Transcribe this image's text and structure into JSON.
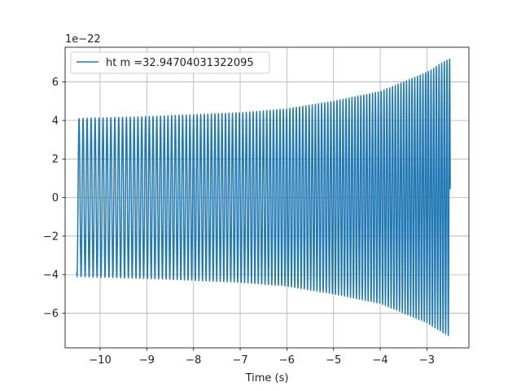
{
  "chart_data": {
    "type": "line",
    "title": "",
    "xlabel": "Time (s)",
    "ylabel": "",
    "offset_text": "1e−22",
    "xlim": [
      -10.75,
      -2.1
    ],
    "ylim": [
      -7.8,
      7.8
    ],
    "xticks": [
      -10,
      -9,
      -8,
      -7,
      -6,
      -5,
      -4,
      -3
    ],
    "xtick_labels": [
      "−10",
      "−9",
      "−8",
      "−7",
      "−6",
      "−5",
      "−4",
      "−3"
    ],
    "yticks": [
      -6,
      -4,
      -2,
      0,
      2,
      4,
      6
    ],
    "ytick_labels": [
      "−6",
      "−4",
      "−2",
      "0",
      "2",
      "4",
      "6"
    ],
    "grid": true,
    "legend_position": "top-left",
    "series": [
      {
        "name": "ht m =32.94704031322095",
        "color": "#1f77b4",
        "t_start": -10.5,
        "t_end": -2.5,
        "amplitude_envelope": {
          "t": [
            -10.5,
            -9.0,
            -7.0,
            -6.0,
            -5.0,
            -4.0,
            -3.0,
            -2.6,
            -2.5
          ],
          "amp": [
            4.1,
            4.2,
            4.4,
            4.6,
            5.0,
            5.5,
            6.5,
            7.1,
            7.2
          ]
        },
        "frequency_hz": {
          "t": [
            -10.5,
            -6.5,
            -2.5
          ],
          "f": [
            11.5,
            13.8,
            17.8
          ]
        },
        "start_value": -3.85,
        "end_value": 1.4
      }
    ]
  }
}
